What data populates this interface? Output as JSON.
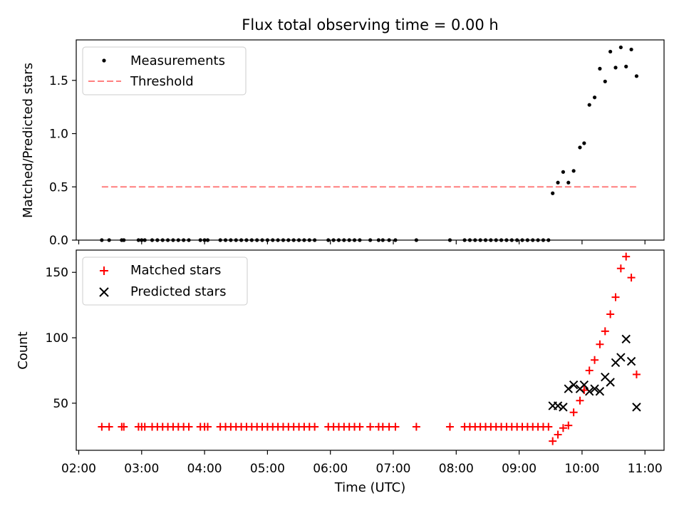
{
  "title": "Flux total observing time = 0.00 h",
  "colors": {
    "measurement": "#000000",
    "threshold": "#ff7f7f",
    "matched": "#ff0000",
    "predicted": "#000000"
  },
  "chart_data": [
    {
      "type": "scatter",
      "panel": "top",
      "title": "Flux total observing time = 0.00 h",
      "ylabel": "Matched/Predicted stars",
      "xlabel": "",
      "xlim": [
        "02:00",
        "11:00"
      ],
      "ylim": [
        0,
        1.88
      ],
      "yticks": [
        0.0,
        0.5,
        1.0,
        1.5
      ],
      "ytick_labels": [
        "0.0",
        "0.5",
        "1.0",
        "1.5"
      ],
      "legend_position": "upper-left",
      "legend": [
        "Measurements",
        "Threshold"
      ],
      "threshold": {
        "name": "Threshold",
        "y": 0.5,
        "x_start": "02:22",
        "x_end": "10:52",
        "style": "dashed"
      },
      "series": [
        {
          "name": "Measurements",
          "marker": "dot",
          "points": [
            [
              "02:22",
              0
            ],
            [
              "02:29",
              0
            ],
            [
              "02:41",
              0
            ],
            [
              "02:43",
              0
            ],
            [
              "02:57",
              0
            ],
            [
              "03:00",
              0
            ],
            [
              "03:03",
              0
            ],
            [
              "03:10",
              0
            ],
            [
              "03:15",
              0
            ],
            [
              "03:20",
              0
            ],
            [
              "03:25",
              0
            ],
            [
              "03:30",
              0
            ],
            [
              "03:35",
              0
            ],
            [
              "03:40",
              0
            ],
            [
              "03:45",
              0
            ],
            [
              "03:56",
              0
            ],
            [
              "04:00",
              0
            ],
            [
              "04:03",
              0
            ],
            [
              "04:15",
              0
            ],
            [
              "04:20",
              0
            ],
            [
              "04:25",
              0
            ],
            [
              "04:30",
              0
            ],
            [
              "04:35",
              0
            ],
            [
              "04:40",
              0
            ],
            [
              "04:45",
              0
            ],
            [
              "04:50",
              0
            ],
            [
              "04:55",
              0
            ],
            [
              "05:00",
              0
            ],
            [
              "05:05",
              0
            ],
            [
              "05:10",
              0
            ],
            [
              "05:15",
              0
            ],
            [
              "05:20",
              0
            ],
            [
              "05:25",
              0
            ],
            [
              "05:30",
              0
            ],
            [
              "05:35",
              0
            ],
            [
              "05:40",
              0
            ],
            [
              "05:45",
              0
            ],
            [
              "05:58",
              0
            ],
            [
              "06:03",
              0
            ],
            [
              "06:08",
              0
            ],
            [
              "06:13",
              0
            ],
            [
              "06:18",
              0
            ],
            [
              "06:23",
              0
            ],
            [
              "06:28",
              0
            ],
            [
              "06:38",
              0
            ],
            [
              "06:46",
              0
            ],
            [
              "06:50",
              0
            ],
            [
              "06:56",
              0
            ],
            [
              "07:02",
              0
            ],
            [
              "07:22",
              0
            ],
            [
              "07:54",
              0
            ],
            [
              "08:08",
              0
            ],
            [
              "08:13",
              0
            ],
            [
              "08:18",
              0
            ],
            [
              "08:23",
              0
            ],
            [
              "08:28",
              0
            ],
            [
              "08:33",
              0
            ],
            [
              "08:38",
              0
            ],
            [
              "08:43",
              0
            ],
            [
              "08:48",
              0
            ],
            [
              "08:53",
              0
            ],
            [
              "08:58",
              0
            ],
            [
              "09:03",
              0
            ],
            [
              "09:08",
              0
            ],
            [
              "09:13",
              0
            ],
            [
              "09:18",
              0
            ],
            [
              "09:23",
              0
            ],
            [
              "09:28",
              0
            ],
            [
              "09:32",
              0.44
            ],
            [
              "09:37",
              0.54
            ],
            [
              "09:42",
              0.64
            ],
            [
              "09:47",
              0.54
            ],
            [
              "09:52",
              0.65
            ],
            [
              "09:58",
              0.87
            ],
            [
              "10:02",
              0.91
            ],
            [
              "10:07",
              1.27
            ],
            [
              "10:12",
              1.34
            ],
            [
              "10:17",
              1.61
            ],
            [
              "10:22",
              1.49
            ],
            [
              "10:27",
              1.77
            ],
            [
              "10:32",
              1.62
            ],
            [
              "10:37",
              1.81
            ],
            [
              "10:42",
              1.63
            ],
            [
              "10:47",
              1.79
            ],
            [
              "10:52",
              1.54
            ]
          ]
        }
      ]
    },
    {
      "type": "scatter",
      "panel": "bottom",
      "title": "",
      "xlabel": "Time (UTC)",
      "ylabel": "Count",
      "xlim": [
        "02:00",
        "11:00"
      ],
      "ylim": [
        14,
        167
      ],
      "xticks": [
        "02:00",
        "03:00",
        "04:00",
        "05:00",
        "06:00",
        "07:00",
        "08:00",
        "09:00",
        "10:00",
        "11:00"
      ],
      "xtick_labels": [
        "02:00",
        "03:00",
        "04:00",
        "05:00",
        "06:00",
        "07:00",
        "08:00",
        "09:00",
        "10:00",
        "11:00"
      ],
      "yticks": [
        50,
        100,
        150
      ],
      "ytick_labels": [
        "50",
        "100",
        "150"
      ],
      "legend_position": "upper-left",
      "legend": [
        "Matched stars",
        "Predicted stars"
      ],
      "series": [
        {
          "name": "Matched stars",
          "marker": "plus",
          "points": [
            [
              "02:22",
              32
            ],
            [
              "02:29",
              32
            ],
            [
              "02:41",
              32
            ],
            [
              "02:43",
              32
            ],
            [
              "02:57",
              32
            ],
            [
              "03:00",
              32
            ],
            [
              "03:03",
              32
            ],
            [
              "03:10",
              32
            ],
            [
              "03:15",
              32
            ],
            [
              "03:20",
              32
            ],
            [
              "03:25",
              32
            ],
            [
              "03:30",
              32
            ],
            [
              "03:35",
              32
            ],
            [
              "03:40",
              32
            ],
            [
              "03:45",
              32
            ],
            [
              "03:56",
              32
            ],
            [
              "04:00",
              32
            ],
            [
              "04:03",
              32
            ],
            [
              "04:15",
              32
            ],
            [
              "04:20",
              32
            ],
            [
              "04:25",
              32
            ],
            [
              "04:30",
              32
            ],
            [
              "04:35",
              32
            ],
            [
              "04:40",
              32
            ],
            [
              "04:45",
              32
            ],
            [
              "04:50",
              32
            ],
            [
              "04:55",
              32
            ],
            [
              "05:00",
              32
            ],
            [
              "05:05",
              32
            ],
            [
              "05:10",
              32
            ],
            [
              "05:15",
              32
            ],
            [
              "05:20",
              32
            ],
            [
              "05:25",
              32
            ],
            [
              "05:30",
              32
            ],
            [
              "05:35",
              32
            ],
            [
              "05:40",
              32
            ],
            [
              "05:45",
              32
            ],
            [
              "05:58",
              32
            ],
            [
              "06:03",
              32
            ],
            [
              "06:08",
              32
            ],
            [
              "06:13",
              32
            ],
            [
              "06:18",
              32
            ],
            [
              "06:23",
              32
            ],
            [
              "06:28",
              32
            ],
            [
              "06:38",
              32
            ],
            [
              "06:46",
              32
            ],
            [
              "06:50",
              32
            ],
            [
              "06:56",
              32
            ],
            [
              "07:02",
              32
            ],
            [
              "07:22",
              32
            ],
            [
              "07:54",
              32
            ],
            [
              "08:08",
              32
            ],
            [
              "08:13",
              32
            ],
            [
              "08:18",
              32
            ],
            [
              "08:23",
              32
            ],
            [
              "08:28",
              32
            ],
            [
              "08:33",
              32
            ],
            [
              "08:38",
              32
            ],
            [
              "08:43",
              32
            ],
            [
              "08:48",
              32
            ],
            [
              "08:53",
              32
            ],
            [
              "08:58",
              32
            ],
            [
              "09:03",
              32
            ],
            [
              "09:08",
              32
            ],
            [
              "09:13",
              32
            ],
            [
              "09:18",
              32
            ],
            [
              "09:23",
              32
            ],
            [
              "09:28",
              32
            ],
            [
              "09:32",
              21
            ],
            [
              "09:37",
              26
            ],
            [
              "09:42",
              31
            ],
            [
              "09:47",
              33
            ],
            [
              "09:52",
              43
            ],
            [
              "09:58",
              52
            ],
            [
              "10:02",
              60
            ],
            [
              "10:07",
              75
            ],
            [
              "10:12",
              83
            ],
            [
              "10:17",
              95
            ],
            [
              "10:22",
              105
            ],
            [
              "10:27",
              118
            ],
            [
              "10:32",
              131
            ],
            [
              "10:37",
              153
            ],
            [
              "10:42",
              162
            ],
            [
              "10:47",
              146
            ],
            [
              "10:52",
              72
            ]
          ]
        },
        {
          "name": "Predicted stars",
          "marker": "x",
          "points": [
            [
              "09:32",
              48
            ],
            [
              "09:37",
              48
            ],
            [
              "09:42",
              47
            ],
            [
              "09:47",
              61
            ],
            [
              "09:52",
              64
            ],
            [
              "09:58",
              61
            ],
            [
              "10:02",
              64
            ],
            [
              "10:07",
              59
            ],
            [
              "10:12",
              61
            ],
            [
              "10:17",
              59
            ],
            [
              "10:22",
              70
            ],
            [
              "10:27",
              66
            ],
            [
              "10:32",
              81
            ],
            [
              "10:37",
              85
            ],
            [
              "10:42",
              99
            ],
            [
              "10:47",
              82
            ],
            [
              "10:52",
              47
            ]
          ]
        }
      ]
    }
  ]
}
